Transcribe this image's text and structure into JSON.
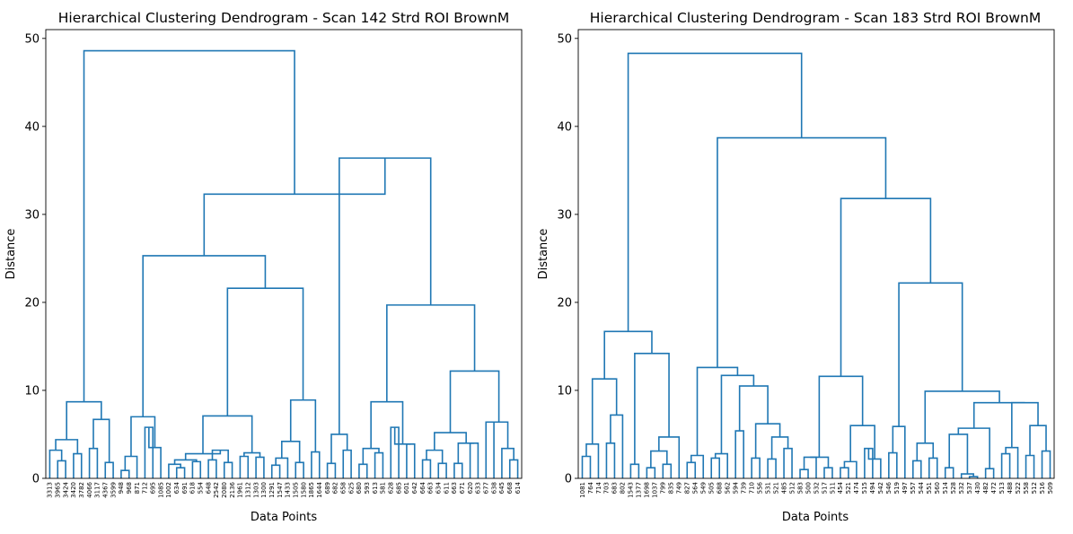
{
  "chart_data": [
    {
      "type": "dendrogram",
      "title": "Hierarchical Clustering Dendrogram - Scan 142 Strd ROI BrownM",
      "xlabel": "Data Points",
      "ylabel": "Distance",
      "ylim": [
        0,
        51
      ],
      "yticks": [
        "0",
        "10",
        "20",
        "30",
        "40",
        "50"
      ],
      "color": "#1f77b4",
      "leaves": [
        "3313",
        "3965",
        "3424",
        "3420",
        "3782",
        "4066",
        "3117",
        "4367",
        "3599",
        "948",
        "968",
        "871",
        "712",
        "695",
        "1085",
        "1002",
        "634",
        "691",
        "618",
        "554",
        "648",
        "2542",
        "2080",
        "2136",
        "1961",
        "1312",
        "1303",
        "1300",
        "1291",
        "1547",
        "1433",
        "1505",
        "1580",
        "1865",
        "1644",
        "689",
        "682",
        "658",
        "625",
        "680",
        "593",
        "613",
        "581",
        "628",
        "685",
        "601",
        "642",
        "664",
        "663",
        "634",
        "611",
        "663",
        "671",
        "620",
        "633",
        "677",
        "638",
        "645",
        "668",
        "614"
      ],
      "merges": [
        [
          0,
          1,
          4.4
        ],
        [
          2,
          3,
          3.2
        ],
        [
          4,
          5,
          2.0
        ],
        [
          6,
          7,
          2.8
        ],
        [
          8,
          9,
          3.4
        ],
        [
          10,
          11,
          1.8
        ],
        [
          12,
          13,
          2.5
        ],
        [
          14,
          15,
          0.9
        ],
        [
          16,
          17,
          3.5
        ],
        [
          18,
          19,
          3.5
        ],
        [
          20,
          21,
          2.8
        ],
        [
          22,
          23,
          2.3
        ],
        [
          24,
          25,
          1.6
        ],
        [
          26,
          27,
          1.2
        ],
        [
          28,
          29,
          1.9
        ],
        [
          30,
          31,
          3.2
        ],
        [
          32,
          33,
          2.1
        ],
        [
          34,
          35,
          2.5
        ],
        [
          36,
          37,
          2.9
        ],
        [
          38,
          39,
          2.5
        ],
        [
          40,
          41,
          2.4
        ],
        [
          42,
          43,
          1.7
        ],
        [
          44,
          45,
          1.4
        ],
        [
          46,
          47,
          3.1
        ],
        [
          48,
          49,
          1.7
        ],
        [
          50,
          51,
          3.2
        ],
        [
          52,
          53,
          1.6
        ],
        [
          54,
          55,
          3.4
        ],
        [
          56,
          57,
          3.0
        ],
        [
          58,
          59,
          1.8
        ],
        [
          60,
          61,
          5.8
        ],
        [
          62,
          63,
          3.9
        ],
        [
          64,
          65,
          2.6
        ],
        [
          66,
          67,
          2.0
        ],
        [
          68,
          69,
          3.2
        ],
        [
          70,
          71,
          2.1
        ],
        [
          72,
          73,
          1.7
        ],
        [
          74,
          75,
          4.0
        ],
        [
          76,
          77,
          1.7
        ],
        [
          78,
          79,
          6.4
        ],
        [
          80,
          81,
          3.4
        ],
        [
          82,
          83,
          2.1
        ],
        [
          84,
          85,
          8.7
        ],
        [
          86,
          87,
          6.7
        ],
        [
          88,
          89,
          7.0
        ],
        [
          90,
          91,
          7.1
        ],
        [
          92,
          93,
          8.9
        ],
        [
          94,
          95,
          4.2
        ],
        [
          96,
          97,
          5.0
        ],
        [
          98,
          99,
          8.7
        ],
        [
          100,
          101,
          5.2
        ],
        [
          102,
          103,
          12.2
        ],
        [
          104,
          105,
          21.6
        ],
        [
          106,
          107,
          25.3
        ],
        [
          108,
          109,
          19.7
        ],
        [
          110,
          111,
          32.3
        ],
        [
          112,
          113,
          36.4
        ],
        [
          114,
          115,
          48.6
        ]
      ],
      "structure": [
        [
          [
            [
              [
                [
                  0,
                  1
                ],
                [
                  2,
                  3
                ]
              ],
              [
                [
                  4,
                  5
                ],
                [
                  6,
                  7
                ]
              ]
            ],
            8.7
          ],
          [
            [
              [
                [
                  8,
                  9
                ],
                [
                  10,
                  11
                ]
              ],
              6.7
            ]
          ]
        ]
      ]
    },
    {
      "type": "dendrogram",
      "title": "Hierarchical Clustering Dendrogram - Scan 183 Strd ROI BrownM",
      "xlabel": "Data Points",
      "ylabel": "Distance",
      "ylim": [
        0,
        51
      ],
      "yticks": [
        "0",
        "10",
        "20",
        "30",
        "40",
        "50"
      ],
      "color": "#1f77b4",
      "leaves": [
        "1081",
        "764",
        "714",
        "703",
        "683",
        "802",
        "1543",
        "1377",
        "1698",
        "1037",
        "799",
        "835",
        "749",
        "827",
        "564",
        "549",
        "505",
        "688",
        "562",
        "594",
        "739",
        "710",
        "556",
        "531",
        "521",
        "485",
        "512",
        "583",
        "500",
        "532",
        "517",
        "511",
        "454",
        "521",
        "474",
        "515",
        "494",
        "542",
        "546",
        "519",
        "497",
        "557",
        "544",
        "551",
        "560",
        "514",
        "528",
        "532",
        "537",
        "430",
        "482",
        "472",
        "513",
        "488",
        "522",
        "558",
        "512",
        "516",
        "509"
      ],
      "merges": [],
      "structure": []
    }
  ]
}
